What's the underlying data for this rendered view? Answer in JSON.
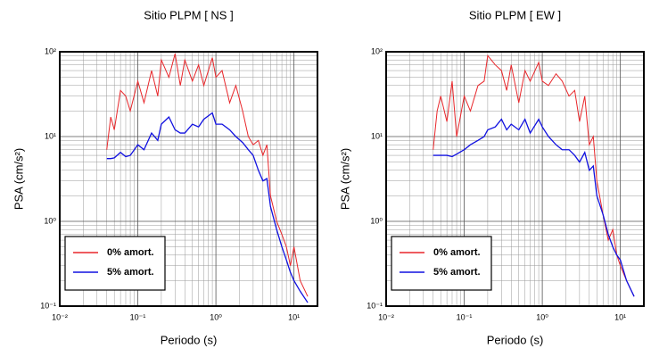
{
  "chart_data": [
    {
      "type": "line",
      "title": "Sitio PLPM [ NS ]",
      "x_label": "Periodo (s)",
      "y_label": "PSA (cm/s²)",
      "log_x": true,
      "log_y": true,
      "grid": true,
      "minor_grid": true,
      "legend": "lower left",
      "xlim": [
        0.01,
        20
      ],
      "ylim": [
        0.1,
        100
      ],
      "xticks": [
        {
          "value": 0.01,
          "label": "10⁻²"
        },
        {
          "value": 0.1,
          "label": "10⁻¹"
        },
        {
          "value": 1,
          "label": "10⁰"
        },
        {
          "value": 10,
          "label": "10¹"
        }
      ],
      "yticks": [
        {
          "value": 0.1,
          "label": "10⁻¹"
        },
        {
          "value": 1,
          "label": "10⁰"
        },
        {
          "value": 10,
          "label": "10¹"
        },
        {
          "value": 100,
          "label": "10²"
        }
      ],
      "x": [
        0.04,
        0.045,
        0.05,
        0.06,
        0.07,
        0.08,
        0.1,
        0.12,
        0.15,
        0.18,
        0.2,
        0.25,
        0.3,
        0.35,
        0.4,
        0.5,
        0.6,
        0.7,
        0.9,
        1.0,
        1.2,
        1.5,
        1.8,
        2.2,
        2.6,
        3,
        3.5,
        4,
        4.5,
        5,
        6,
        7,
        8,
        9,
        10,
        12,
        15
      ],
      "series": [
        {
          "name": "0% amort.",
          "color": "#e8262a",
          "values": [
            7,
            17,
            12,
            35,
            30,
            20,
            45,
            25,
            60,
            30,
            80,
            50,
            95,
            40,
            80,
            45,
            70,
            40,
            85,
            50,
            60,
            25,
            40,
            20,
            10,
            8,
            9,
            6,
            8,
            2,
            1,
            0.7,
            0.5,
            0.3,
            0.5,
            0.2,
            0.13
          ]
        },
        {
          "name": "5% amort.",
          "color": "#1010e0",
          "values": [
            5.5,
            5.5,
            5.6,
            6.5,
            5.8,
            6,
            8,
            7,
            11,
            9,
            14,
            17,
            12,
            11,
            11,
            14,
            13,
            16,
            19,
            14,
            14,
            12,
            10,
            8.5,
            7,
            6,
            4,
            3,
            3.2,
            1.5,
            0.8,
            0.5,
            0.35,
            0.25,
            0.2,
            0.15,
            0.11
          ]
        }
      ]
    },
    {
      "type": "line",
      "title": "Sitio PLPM [ EW ]",
      "x_label": "Periodo (s)",
      "y_label": "PSA (cm/s²)",
      "log_x": true,
      "log_y": true,
      "grid": true,
      "minor_grid": true,
      "legend": "lower left",
      "xlim": [
        0.01,
        20
      ],
      "ylim": [
        0.1,
        100
      ],
      "xticks": [
        {
          "value": 0.01,
          "label": "10⁻²"
        },
        {
          "value": 0.1,
          "label": "10⁻¹"
        },
        {
          "value": 1,
          "label": "10⁰"
        },
        {
          "value": 10,
          "label": "10¹"
        }
      ],
      "yticks": [
        {
          "value": 0.1,
          "label": "10⁻¹"
        },
        {
          "value": 1,
          "label": "10⁰"
        },
        {
          "value": 10,
          "label": "10¹"
        },
        {
          "value": 100,
          "label": "10²"
        }
      ],
      "x": [
        0.04,
        0.045,
        0.05,
        0.06,
        0.07,
        0.08,
        0.1,
        0.12,
        0.15,
        0.18,
        0.2,
        0.25,
        0.3,
        0.35,
        0.4,
        0.5,
        0.6,
        0.7,
        0.9,
        1.0,
        1.2,
        1.5,
        1.8,
        2.2,
        2.6,
        3,
        3.5,
        4,
        4.5,
        5,
        6,
        7,
        8,
        9,
        10,
        12,
        15
      ],
      "series": [
        {
          "name": "0% amort.",
          "color": "#e8262a",
          "values": [
            7,
            20,
            30,
            15,
            45,
            10,
            30,
            20,
            40,
            45,
            90,
            70,
            60,
            35,
            70,
            25,
            60,
            45,
            75,
            45,
            40,
            55,
            45,
            30,
            35,
            15,
            30,
            8,
            10,
            3,
            1.2,
            0.6,
            0.8,
            0.4,
            0.3,
            0.2,
            0.13
          ]
        },
        {
          "name": "5% amort.",
          "color": "#1010e0",
          "values": [
            6,
            6,
            6,
            6,
            5.8,
            6.2,
            7,
            8,
            9,
            10,
            12,
            13,
            16,
            12,
            14,
            12,
            16,
            11,
            16,
            13,
            10,
            8,
            7,
            7,
            6,
            5,
            6.5,
            4,
            4.5,
            2,
            1.2,
            0.7,
            0.5,
            0.4,
            0.35,
            0.2,
            0.13
          ]
        }
      ]
    }
  ]
}
